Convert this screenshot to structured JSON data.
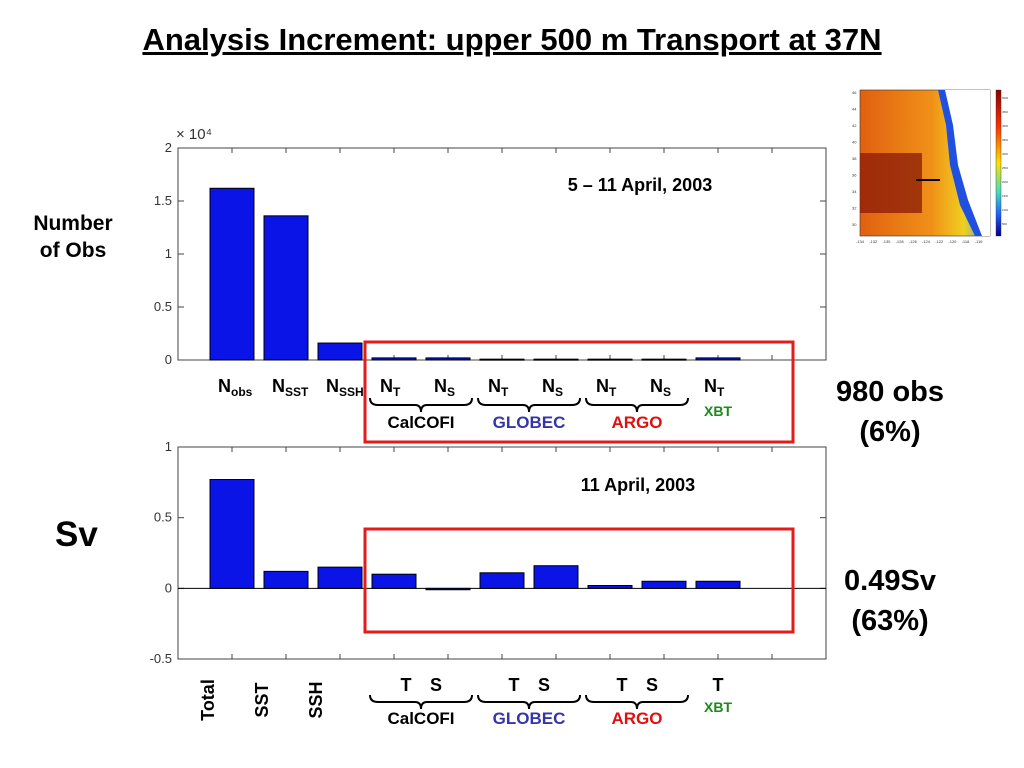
{
  "slide": {
    "title": "Analysis Increment: upper 500 m Transport at 37N",
    "summary_obs": [
      "980 obs",
      "(6%)"
    ],
    "summary_sv": [
      "0.49Sv",
      "(63%)"
    ]
  },
  "colors": {
    "bar": "#0a14e6",
    "highlight_box": "#e31b1b",
    "globec": "#3535a8",
    "argo": "#e01010",
    "xbt": "#1a8a1a"
  },
  "chart_data": [
    {
      "type": "bar",
      "title": "5 – 11 April, 2003",
      "ylabel": "Number of Obs",
      "ylabel_lines": [
        "Number",
        "of Obs"
      ],
      "yscale_label": "× 10⁴",
      "ylim": [
        0,
        2
      ],
      "yticks": [
        "0",
        "0.5",
        "1",
        "1.5",
        "2"
      ],
      "ytick_values": [
        0,
        0.5,
        1,
        1.5,
        2
      ],
      "categories": [
        "N_obs",
        "N_SST",
        "N_SSH",
        "N_T CalCOFI",
        "N_S CalCOFI",
        "N_T GLOBEC",
        "N_S GLOBEC",
        "N_T ARGO",
        "N_S ARGO",
        "N_T XBT"
      ],
      "category_labels": [
        {
          "main": "N",
          "sub": "obs"
        },
        {
          "main": "N",
          "sub": "SST"
        },
        {
          "main": "N",
          "sub": "SSH"
        },
        {
          "main": "N",
          "sub": "T"
        },
        {
          "main": "N",
          "sub": "S"
        },
        {
          "main": "N",
          "sub": "T"
        },
        {
          "main": "N",
          "sub": "S"
        },
        {
          "main": "N",
          "sub": "T"
        },
        {
          "main": "N",
          "sub": "S"
        },
        {
          "main": "N",
          "sub": "T"
        }
      ],
      "values": [
        1.62,
        1.36,
        0.16,
        0.02,
        0.02,
        0.008,
        0.008,
        0.008,
        0.008,
        0.02
      ],
      "groups": [
        "CalCOFI",
        "GLOBEC",
        "ARGO",
        "XBT"
      ]
    },
    {
      "type": "bar",
      "title": "11 April, 2003",
      "ylabel": "Sv",
      "ylim": [
        -0.5,
        1
      ],
      "yticks": [
        "-0.5",
        "0",
        "0.5",
        "1"
      ],
      "ytick_values": [
        -0.5,
        0,
        0.5,
        1
      ],
      "categories": [
        "Total",
        "SST",
        "SSH",
        "T CalCOFI",
        "S CalCOFI",
        "T GLOBEC",
        "S GLOBEC",
        "T ARGO",
        "S ARGO",
        "T XBT"
      ],
      "category_labels": [
        "Total",
        "SST",
        "SSH",
        "T",
        "S",
        "T",
        "S",
        "T",
        "S",
        "T"
      ],
      "values": [
        0.77,
        0.12,
        0.15,
        0.1,
        -0.01,
        0.11,
        0.16,
        0.02,
        0.05,
        0.05
      ],
      "groups": [
        "CalCOFI",
        "GLOBEC",
        "ARGO",
        "XBT"
      ]
    }
  ],
  "inset_map": {
    "y_ticks": [
      "46",
      "44",
      "42",
      "40",
      "38",
      "36",
      "34",
      "32",
      "30"
    ],
    "x_ticks": [
      "-134",
      "-132",
      "-130",
      "-128",
      "-126",
      "-124",
      "-122",
      "-120",
      "-118",
      "-116"
    ],
    "colorbar_ticks": [
      "5000",
      "4500",
      "4000",
      "3500",
      "3000",
      "2500",
      "2000",
      "1500",
      "1000",
      "500"
    ]
  }
}
